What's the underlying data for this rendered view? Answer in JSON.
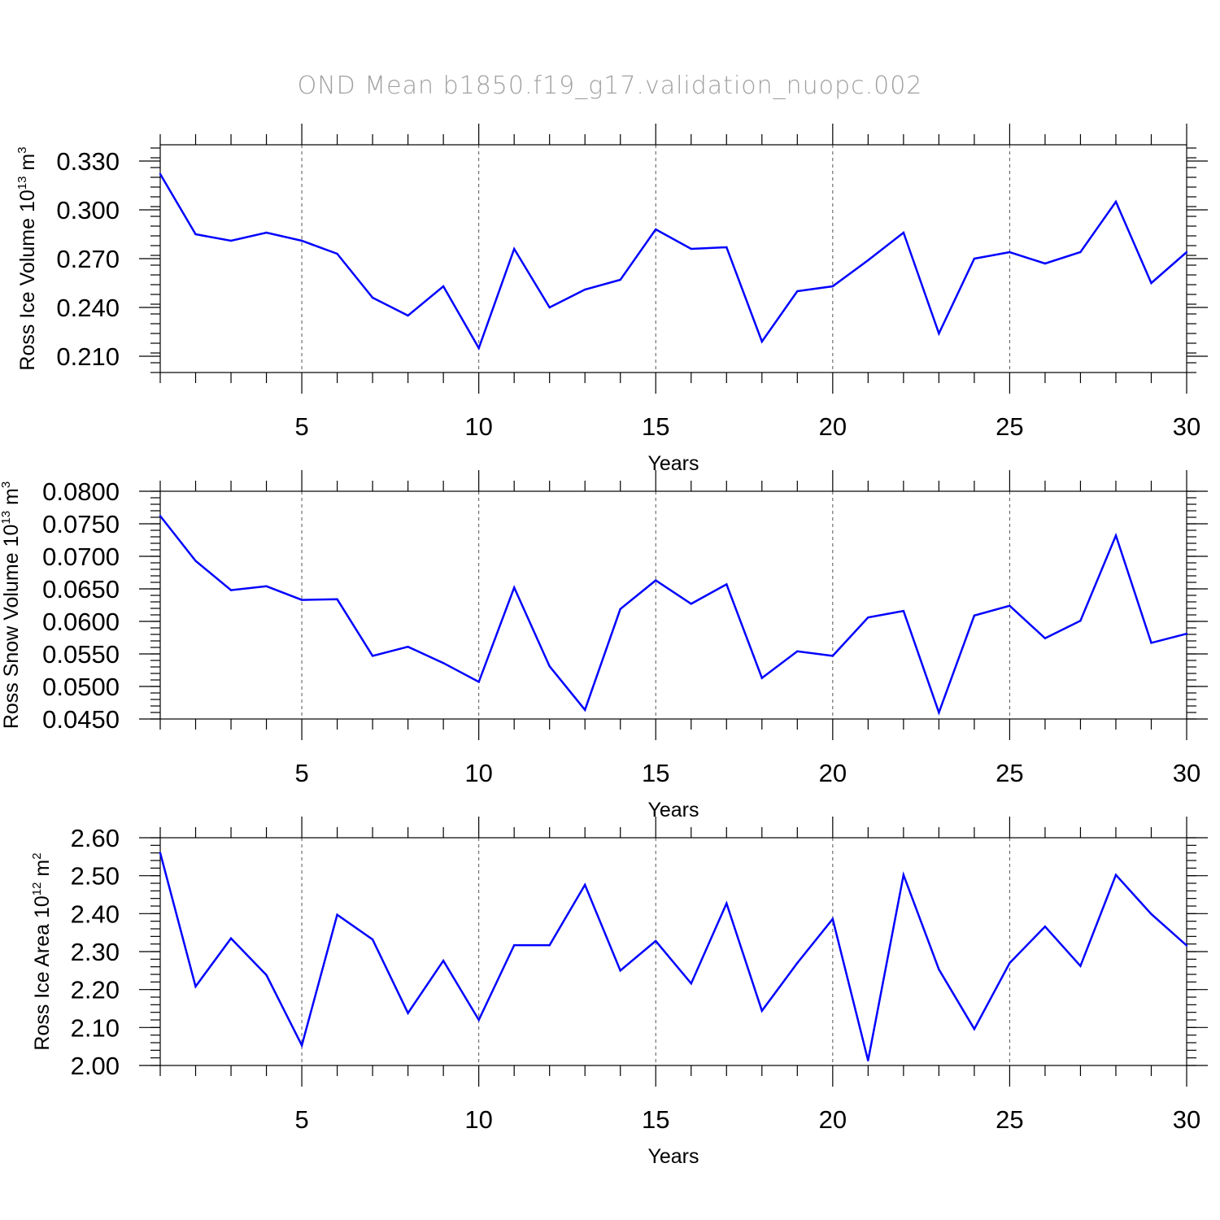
{
  "title": "OND Mean b1850.f19_g17.validation_nuopc.002",
  "colors": {
    "series": "#0000ff",
    "title": "#a0a0a0"
  },
  "chart_data": [
    {
      "type": "line",
      "ylabel": "Ross Ice Volume 10",
      "ylabel_exp": "13",
      "ylabel_unit": " m",
      "ylabel_unit_exp": "3",
      "xlabel": "Years",
      "xlim": [
        1,
        30
      ],
      "ylim": [
        0.2,
        0.34
      ],
      "xticks": [
        5,
        10,
        15,
        20,
        25,
        30
      ],
      "xtick_labels": [
        "5",
        "10",
        "15",
        "20",
        "25",
        "30"
      ],
      "yticks": [
        0.21,
        0.24,
        0.27,
        0.3,
        0.33
      ],
      "ytick_labels": [
        "0.210",
        "0.240",
        "0.270",
        "0.300",
        "0.330"
      ],
      "y_minor_step": 0.006,
      "x": [
        1,
        2,
        3,
        4,
        5,
        6,
        7,
        8,
        9,
        10,
        11,
        12,
        13,
        14,
        15,
        16,
        17,
        18,
        19,
        20,
        21,
        22,
        23,
        24,
        25,
        26,
        27,
        28,
        29,
        30
      ],
      "values": [
        0.322,
        0.285,
        0.281,
        0.286,
        0.281,
        0.273,
        0.246,
        0.235,
        0.253,
        0.215,
        0.276,
        0.24,
        0.251,
        0.257,
        0.288,
        0.276,
        0.277,
        0.219,
        0.25,
        0.253,
        0.269,
        0.286,
        0.224,
        0.27,
        0.274,
        0.267,
        0.274,
        0.305,
        0.255,
        0.274
      ]
    },
    {
      "type": "line",
      "ylabel": "Ross Snow Volume 10",
      "ylabel_exp": "13",
      "ylabel_unit": " m",
      "ylabel_unit_exp": "3",
      "xlabel": "Years",
      "xlim": [
        1,
        30
      ],
      "ylim": [
        0.045,
        0.08
      ],
      "xticks": [
        5,
        10,
        15,
        20,
        25,
        30
      ],
      "xtick_labels": [
        "5",
        "10",
        "15",
        "20",
        "25",
        "30"
      ],
      "yticks": [
        0.045,
        0.05,
        0.055,
        0.06,
        0.065,
        0.07,
        0.075,
        0.08
      ],
      "ytick_labels": [
        "0.0450",
        "0.0500",
        "0.0550",
        "0.0600",
        "0.0650",
        "0.0700",
        "0.0750",
        "0.0800"
      ],
      "y_minor_step": 0.001,
      "x": [
        1,
        2,
        3,
        4,
        5,
        6,
        7,
        8,
        9,
        10,
        11,
        12,
        13,
        14,
        15,
        16,
        17,
        18,
        19,
        20,
        21,
        22,
        23,
        24,
        25,
        26,
        27,
        28,
        29,
        30
      ],
      "values": [
        0.0762,
        0.0693,
        0.0648,
        0.0654,
        0.0633,
        0.0634,
        0.0547,
        0.0561,
        0.0536,
        0.0507,
        0.0652,
        0.0531,
        0.0464,
        0.0619,
        0.0663,
        0.0627,
        0.0657,
        0.0513,
        0.0554,
        0.0547,
        0.0606,
        0.0616,
        0.046,
        0.0609,
        0.0624,
        0.0574,
        0.0601,
        0.0732,
        0.0567,
        0.0581
      ]
    },
    {
      "type": "line",
      "ylabel": "Ross Ice Area 10",
      "ylabel_exp": "12",
      "ylabel_unit": " m",
      "ylabel_unit_exp": "2",
      "xlabel": "Years",
      "xlim": [
        1,
        30
      ],
      "ylim": [
        2.0,
        2.6
      ],
      "xticks": [
        5,
        10,
        15,
        20,
        25,
        30
      ],
      "xtick_labels": [
        "5",
        "10",
        "15",
        "20",
        "25",
        "30"
      ],
      "yticks": [
        2.0,
        2.1,
        2.2,
        2.3,
        2.4,
        2.5,
        2.6
      ],
      "ytick_labels": [
        "2.00",
        "2.10",
        "2.20",
        "2.30",
        "2.40",
        "2.50",
        "2.60"
      ],
      "y_minor_step": 0.02,
      "x": [
        1,
        2,
        3,
        4,
        5,
        6,
        7,
        8,
        9,
        10,
        11,
        12,
        13,
        14,
        15,
        16,
        17,
        18,
        19,
        20,
        21,
        22,
        23,
        24,
        25,
        26,
        27,
        28,
        29,
        30
      ],
      "values": [
        2.56,
        2.208,
        2.335,
        2.238,
        2.053,
        2.397,
        2.332,
        2.138,
        2.276,
        2.12,
        2.317,
        2.317,
        2.476,
        2.25,
        2.328,
        2.216,
        2.427,
        2.144,
        2.27,
        2.386,
        2.013,
        2.502,
        2.253,
        2.096,
        2.27,
        2.366,
        2.262,
        2.502,
        2.399,
        2.316
      ]
    }
  ]
}
